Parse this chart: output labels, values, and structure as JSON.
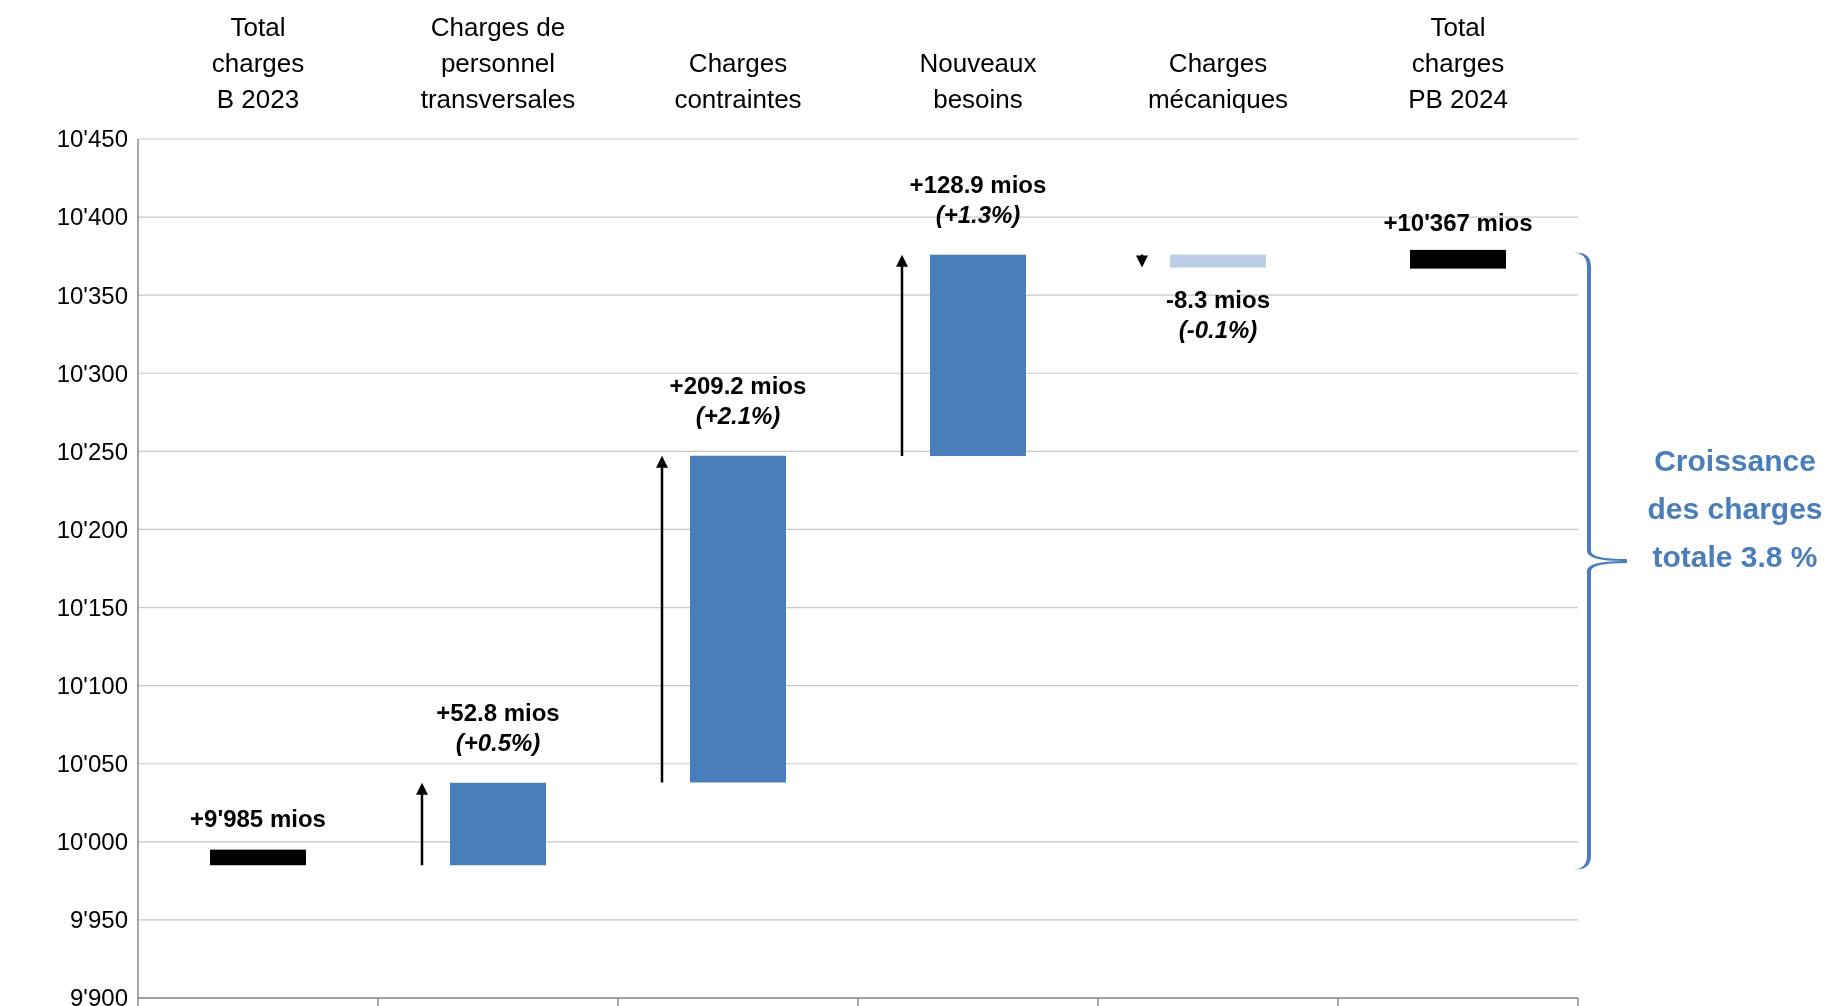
{
  "chart_data": {
    "type": "bar",
    "categories": [
      "Total\ncharges\nB 2023",
      "Charges de\npersonnel\ntransversales",
      "Charges\ncontraintes",
      "Nouveaux\nbesoins",
      "Charges\nmécaniques",
      "Total\ncharges\nPB 2024"
    ],
    "base": [
      9985,
      9985,
      10038,
      10247,
      10376,
      10367
    ],
    "values": [
      10,
      52.8,
      209.2,
      128.9,
      -8.3,
      12
    ],
    "colors": [
      "#000000",
      "#4a7ebb",
      "#4a7ebb",
      "#4a7ebb",
      "#b9cde5",
      "#000000"
    ],
    "value_labels": [
      null,
      "+52.8 mios\n(+0.5%)",
      "+209.2 mios\n(+2.1%)",
      "+128.9 mios\n(+1.3%)",
      "-8.3 mios\n(-0.1%)",
      null
    ],
    "ylim": [
      9900,
      10450
    ],
    "yticks": [
      {
        "value": 9900,
        "label": "9'900"
      },
      {
        "value": 9950,
        "label": "9'950"
      },
      {
        "value": 10000,
        "label": "10'000"
      },
      {
        "value": 10050,
        "label": "10'050"
      },
      {
        "value": 10100,
        "label": "10'100"
      },
      {
        "value": 10150,
        "label": "10'150"
      },
      {
        "value": 10200,
        "label": "10'200"
      },
      {
        "value": 10250,
        "label": "10'250"
      },
      {
        "value": 10300,
        "label": "10'300"
      },
      {
        "value": 10350,
        "label": "10'350"
      },
      {
        "value": 10400,
        "label": "10'400"
      },
      {
        "value": 10450,
        "label": "10'450"
      }
    ],
    "grid": "y",
    "annotations": [
      {
        "text": "+9'985 mios",
        "x": "Total\ncharges\nB 2023",
        "y": 9985
      },
      {
        "text": "+10'367 mios",
        "x": "Total\ncharges\nPB 2024",
        "y": 10367
      },
      "Croissance\ndes charges\ntotale 3.8 %"
    ]
  }
}
